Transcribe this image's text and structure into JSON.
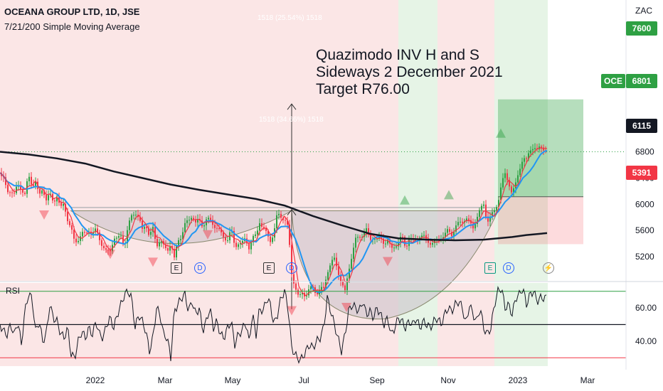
{
  "header": {
    "title": "OCEANA GROUP LTD, 1D, JSE",
    "indicator": "7/21/200 Simple Moving Average",
    "rsi_label": "RSI",
    "currency": "ZAC"
  },
  "annotation": {
    "line1": "Quazimodo INV H and S",
    "line2": "Sideways 2 December 2021",
    "line3": "Target R76.00"
  },
  "range_labels": {
    "upper": "1518 (25.54%) 1518",
    "lower": "1518 (34.66%) 1518"
  },
  "badges": {
    "target": "7600",
    "ticker": "OCE",
    "price": "6801",
    "entry": "6115",
    "stop": "5391"
  },
  "events": {
    "e": "E",
    "d": "D",
    "lightning": "⚡"
  },
  "colors": {
    "bull_bg": "#e6f4e6",
    "bear_bg": "#fbe6e6",
    "price_green": "#2ea043",
    "price_red": "#f23645",
    "sma7": "#f23645",
    "sma21": "#2196f3",
    "sma200": "#131722",
    "pattern_fill": "#c8c0c8",
    "rsi_line": "#131722",
    "rsi_upper": "#2ea043",
    "rsi_lower": "#f23645"
  },
  "chart_data": [
    {
      "type": "candlestick",
      "symbol": "OCEANA GROUP LTD",
      "interval": "1D",
      "exchange": "JSE",
      "unit": "ZAC",
      "ylim": [
        3850,
        8100
      ],
      "y_ticks": [
        4000,
        4400,
        4800,
        5200,
        5600,
        6000,
        6400,
        6800,
        7200
      ],
      "x_ticks": [
        "2022",
        "Mar",
        "May",
        "Jul",
        "Sep",
        "Nov",
        "2023",
        "Mar"
      ],
      "price_path": [
        [
          0,
          6480
        ],
        [
          5,
          6380
        ],
        [
          10,
          6180
        ],
        [
          15,
          6230
        ],
        [
          20,
          6150
        ],
        [
          25,
          6280
        ],
        [
          30,
          6250
        ],
        [
          35,
          6150
        ],
        [
          40,
          6420
        ],
        [
          45,
          6300
        ],
        [
          50,
          6350
        ],
        [
          55,
          6100
        ],
        [
          60,
          6250
        ],
        [
          65,
          6080
        ],
        [
          70,
          6140
        ],
        [
          75,
          6030
        ],
        [
          80,
          6150
        ],
        [
          85,
          5920
        ],
        [
          90,
          6000
        ],
        [
          95,
          5780
        ],
        [
          100,
          5620
        ],
        [
          105,
          5400
        ],
        [
          110,
          5480
        ],
        [
          115,
          5560
        ],
        [
          120,
          5520
        ],
        [
          125,
          5620
        ],
        [
          130,
          5550
        ],
        [
          135,
          5600
        ],
        [
          140,
          5480
        ],
        [
          145,
          5350
        ],
        [
          150,
          5250
        ],
        [
          155,
          5300
        ],
        [
          160,
          5500
        ],
        [
          165,
          5450
        ],
        [
          170,
          5520
        ],
        [
          175,
          5380
        ],
        [
          180,
          5640
        ],
        [
          185,
          5820
        ],
        [
          190,
          5900
        ],
        [
          195,
          5780
        ],
        [
          200,
          5600
        ],
        [
          205,
          5720
        ],
        [
          210,
          5500
        ],
        [
          215,
          5620
        ],
        [
          220,
          5380
        ],
        [
          225,
          5460
        ],
        [
          230,
          5350
        ],
        [
          235,
          5300
        ],
        [
          240,
          5420
        ],
        [
          245,
          5150
        ],
        [
          250,
          5460
        ],
        [
          255,
          5520
        ],
        [
          260,
          5680
        ],
        [
          265,
          5750
        ],
        [
          270,
          5850
        ],
        [
          275,
          5700
        ],
        [
          280,
          5760
        ],
        [
          285,
          5680
        ],
        [
          290,
          5760
        ],
        [
          295,
          5750
        ],
        [
          300,
          5700
        ],
        [
          305,
          5640
        ],
        [
          310,
          5550
        ],
        [
          315,
          5500
        ],
        [
          320,
          5470
        ],
        [
          325,
          5600
        ],
        [
          330,
          5360
        ],
        [
          335,
          5420
        ],
        [
          340,
          5380
        ],
        [
          345,
          5480
        ],
        [
          350,
          5350
        ],
        [
          355,
          5470
        ],
        [
          360,
          5520
        ],
        [
          365,
          5750
        ],
        [
          370,
          5620
        ],
        [
          375,
          5540
        ],
        [
          380,
          5460
        ],
        [
          385,
          5560
        ],
        [
          390,
          5850
        ],
        [
          395,
          5820
        ],
        [
          400,
          5780
        ],
        [
          405,
          5620
        ],
        [
          410,
          4950
        ],
        [
          415,
          4750
        ],
        [
          420,
          4550
        ],
        [
          425,
          4650
        ],
        [
          430,
          4620
        ],
        [
          435,
          4700
        ],
        [
          440,
          4720
        ],
        [
          445,
          4650
        ],
        [
          450,
          4700
        ],
        [
          455,
          4700
        ],
        [
          460,
          4980
        ],
        [
          465,
          5100
        ],
        [
          470,
          5150
        ],
        [
          475,
          5000
        ],
        [
          480,
          4800
        ],
        [
          485,
          4650
        ],
        [
          490,
          5000
        ],
        [
          495,
          5250
        ],
        [
          500,
          5450
        ],
        [
          505,
          5500
        ],
        [
          510,
          5550
        ],
        [
          515,
          5600
        ],
        [
          520,
          5450
        ],
        [
          525,
          5520
        ],
        [
          530,
          5450
        ],
        [
          535,
          5480
        ],
        [
          540,
          5420
        ],
        [
          545,
          5450
        ],
        [
          550,
          5300
        ],
        [
          555,
          5380
        ],
        [
          560,
          5420
        ],
        [
          565,
          5500
        ],
        [
          570,
          5350
        ],
        [
          575,
          5480
        ],
        [
          580,
          5420
        ],
        [
          585,
          5480
        ],
        [
          590,
          5520
        ],
        [
          595,
          5500
        ],
        [
          600,
          5450
        ],
        [
          605,
          5420
        ],
        [
          610,
          5400
        ],
        [
          615,
          5450
        ],
        [
          620,
          5500
        ],
        [
          625,
          5520
        ],
        [
          630,
          5600
        ],
        [
          635,
          5550
        ],
        [
          640,
          5650
        ],
        [
          645,
          5700
        ],
        [
          650,
          5750
        ],
        [
          655,
          5800
        ],
        [
          660,
          5700
        ],
        [
          665,
          5650
        ],
        [
          670,
          5800
        ],
        [
          675,
          5900
        ],
        [
          680,
          6000
        ],
        [
          685,
          5750
        ],
        [
          690,
          5800
        ],
        [
          695,
          5900
        ],
        [
          700,
          6050
        ],
        [
          705,
          6300
        ],
        [
          710,
          6450
        ],
        [
          715,
          6350
        ],
        [
          720,
          6150
        ],
        [
          725,
          6300
        ],
        [
          730,
          6550
        ],
        [
          735,
          6700
        ],
        [
          740,
          6650
        ],
        [
          745,
          6850
        ],
        [
          750,
          6880
        ],
        [
          755,
          6800
        ],
        [
          760,
          6900
        ],
        [
          765,
          6850
        ],
        [
          769,
          6801
        ]
      ],
      "sma_200_path": [
        [
          0,
          6800
        ],
        [
          40,
          6760
        ],
        [
          80,
          6700
        ],
        [
          120,
          6620
        ],
        [
          160,
          6500
        ],
        [
          200,
          6400
        ],
        [
          240,
          6300
        ],
        [
          280,
          6220
        ],
        [
          320,
          6150
        ],
        [
          360,
          6080
        ],
        [
          400,
          5980
        ],
        [
          440,
          5820
        ],
        [
          480,
          5680
        ],
        [
          520,
          5550
        ],
        [
          560,
          5480
        ],
        [
          600,
          5460
        ],
        [
          640,
          5450
        ],
        [
          680,
          5460
        ],
        [
          700,
          5480
        ],
        [
          720,
          5500
        ],
        [
          740,
          5530
        ],
        [
          769,
          5560
        ]
      ],
      "last_price": 6801,
      "levels": {
        "target": 7600,
        "entry": 6115,
        "stop": 5391
      },
      "measured_moves": [
        {
          "label": "1518 (25.54%) 1518",
          "from": 6010,
          "to": 7530
        },
        {
          "label": "1518 (34.66%) 1518",
          "from": 4400,
          "to": 5920
        }
      ],
      "sell_markers": [
        [
          62,
          5840
        ],
        [
          155,
          5240
        ],
        [
          215,
          5120
        ],
        [
          292,
          5540
        ],
        [
          410,
          4380
        ],
        [
          487,
          4430
        ],
        [
          545,
          5130
        ]
      ],
      "buy_markers": [
        [
          569,
          6060
        ],
        [
          631,
          6140
        ],
        [
          704,
          7080
        ]
      ],
      "earnings_events": [
        "E",
        "D",
        "E",
        "D",
        "E",
        "D",
        "⚡"
      ]
    },
    {
      "type": "line",
      "name": "RSI",
      "ylim": [
        25,
        75
      ],
      "y_ticks": [
        40.0,
        60.0
      ],
      "bands": [
        30,
        50,
        70
      ],
      "values": [
        [
          0,
          50
        ],
        [
          5,
          46
        ],
        [
          10,
          44
        ],
        [
          15,
          50
        ],
        [
          20,
          44
        ],
        [
          25,
          52
        ],
        [
          30,
          38
        ],
        [
          35,
          58
        ],
        [
          40,
          68
        ],
        [
          45,
          66
        ],
        [
          50,
          46
        ],
        [
          55,
          52
        ],
        [
          60,
          40
        ],
        [
          65,
          44
        ],
        [
          70,
          62
        ],
        [
          75,
          54
        ],
        [
          80,
          52
        ],
        [
          85,
          45
        ],
        [
          90,
          42
        ],
        [
          95,
          48
        ],
        [
          100,
          32
        ],
        [
          105,
          30
        ],
        [
          110,
          40
        ],
        [
          115,
          46
        ],
        [
          120,
          42
        ],
        [
          125,
          48
        ],
        [
          130,
          44
        ],
        [
          135,
          52
        ],
        [
          140,
          44
        ],
        [
          145,
          42
        ],
        [
          150,
          50
        ],
        [
          155,
          54
        ],
        [
          160,
          48
        ],
        [
          165,
          56
        ],
        [
          170,
          62
        ],
        [
          175,
          68
        ],
        [
          180,
          70
        ],
        [
          185,
          66
        ],
        [
          190,
          48
        ],
        [
          195,
          56
        ],
        [
          200,
          52
        ],
        [
          205,
          46
        ],
        [
          210,
          34
        ],
        [
          215,
          42
        ],
        [
          220,
          60
        ],
        [
          225,
          56
        ],
        [
          230,
          44
        ],
        [
          235,
          42
        ],
        [
          240,
          30
        ],
        [
          245,
          58
        ],
        [
          250,
          62
        ],
        [
          255,
          66
        ],
        [
          260,
          68
        ],
        [
          265,
          58
        ],
        [
          270,
          64
        ],
        [
          275,
          56
        ],
        [
          280,
          60
        ],
        [
          285,
          46
        ],
        [
          290,
          52
        ],
        [
          295,
          60
        ],
        [
          300,
          48
        ],
        [
          305,
          52
        ],
        [
          310,
          44
        ],
        [
          315,
          42
        ],
        [
          320,
          48
        ],
        [
          325,
          52
        ],
        [
          330,
          38
        ],
        [
          335,
          44
        ],
        [
          340,
          46
        ],
        [
          345,
          52
        ],
        [
          350,
          40
        ],
        [
          355,
          56
        ],
        [
          360,
          44
        ],
        [
          365,
          60
        ],
        [
          370,
          58
        ],
        [
          375,
          66
        ],
        [
          380,
          62
        ],
        [
          385,
          50
        ],
        [
          390,
          56
        ],
        [
          395,
          66
        ],
        [
          400,
          70
        ],
        [
          405,
          60
        ],
        [
          410,
          36
        ],
        [
          415,
          32
        ],
        [
          420,
          28
        ],
        [
          425,
          30
        ],
        [
          430,
          34
        ],
        [
          435,
          38
        ],
        [
          440,
          36
        ],
        [
          445,
          40
        ],
        [
          450,
          42
        ],
        [
          455,
          48
        ],
        [
          460,
          66
        ],
        [
          465,
          58
        ],
        [
          470,
          50
        ],
        [
          475,
          42
        ],
        [
          480,
          34
        ],
        [
          485,
          44
        ],
        [
          490,
          58
        ],
        [
          495,
          62
        ],
        [
          500,
          60
        ],
        [
          505,
          58
        ],
        [
          510,
          64
        ],
        [
          515,
          56
        ],
        [
          520,
          58
        ],
        [
          525,
          54
        ],
        [
          530,
          60
        ],
        [
          535,
          56
        ],
        [
          540,
          50
        ],
        [
          545,
          54
        ],
        [
          550,
          44
        ],
        [
          555,
          48
        ],
        [
          560,
          54
        ],
        [
          565,
          52
        ],
        [
          570,
          48
        ],
        [
          575,
          52
        ],
        [
          580,
          50
        ],
        [
          585,
          54
        ],
        [
          590,
          48
        ],
        [
          595,
          52
        ],
        [
          600,
          50
        ],
        [
          605,
          48
        ],
        [
          610,
          52
        ],
        [
          615,
          54
        ],
        [
          620,
          50
        ],
        [
          625,
          56
        ],
        [
          630,
          60
        ],
        [
          635,
          58
        ],
        [
          640,
          62
        ],
        [
          645,
          64
        ],
        [
          650,
          60
        ],
        [
          655,
          50
        ],
        [
          660,
          62
        ],
        [
          665,
          56
        ],
        [
          670,
          52
        ],
        [
          675,
          60
        ],
        [
          680,
          48
        ],
        [
          685,
          44
        ],
        [
          690,
          48
        ],
        [
          695,
          62
        ],
        [
          700,
          70
        ],
        [
          705,
          72
        ],
        [
          710,
          60
        ],
        [
          715,
          62
        ],
        [
          720,
          56
        ],
        [
          725,
          66
        ],
        [
          730,
          68
        ],
        [
          735,
          72
        ],
        [
          740,
          62
        ],
        [
          745,
          68
        ],
        [
          750,
          70
        ],
        [
          755,
          64
        ],
        [
          760,
          66
        ],
        [
          765,
          66
        ],
        [
          769,
          66
        ]
      ]
    }
  ]
}
